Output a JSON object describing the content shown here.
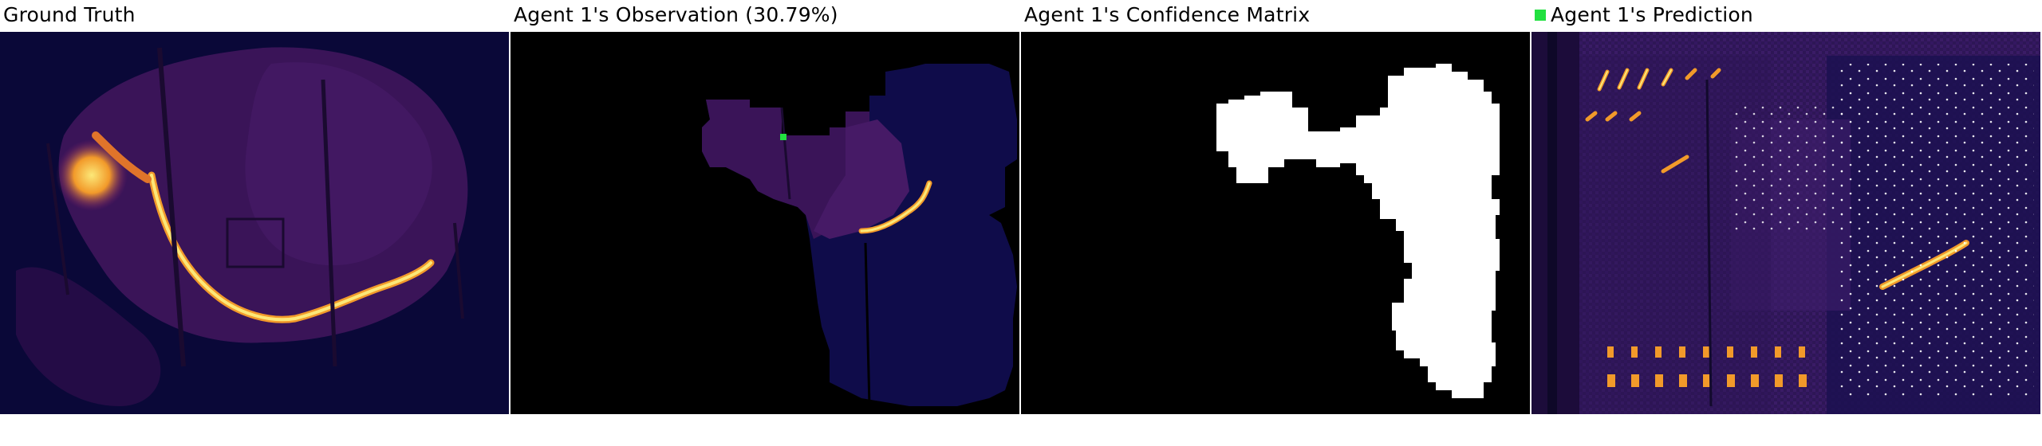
{
  "panels": [
    {
      "title": "Ground Truth"
    },
    {
      "title": "Agent 1's Observation (30.79%)"
    },
    {
      "title": "Agent 1's Confidence Matrix"
    },
    {
      "title": "Agent 1's Prediction"
    }
  ],
  "colors": {
    "background_dark": "#0a0838",
    "burn_purple": "#3a1458",
    "fire_front": "#f7b030",
    "fire_core": "#fce878",
    "marker_green": "#22e040",
    "confidence_white": "#ffffff",
    "confidence_black": "#000000"
  },
  "legend": {
    "icon": "green-square-icon"
  }
}
